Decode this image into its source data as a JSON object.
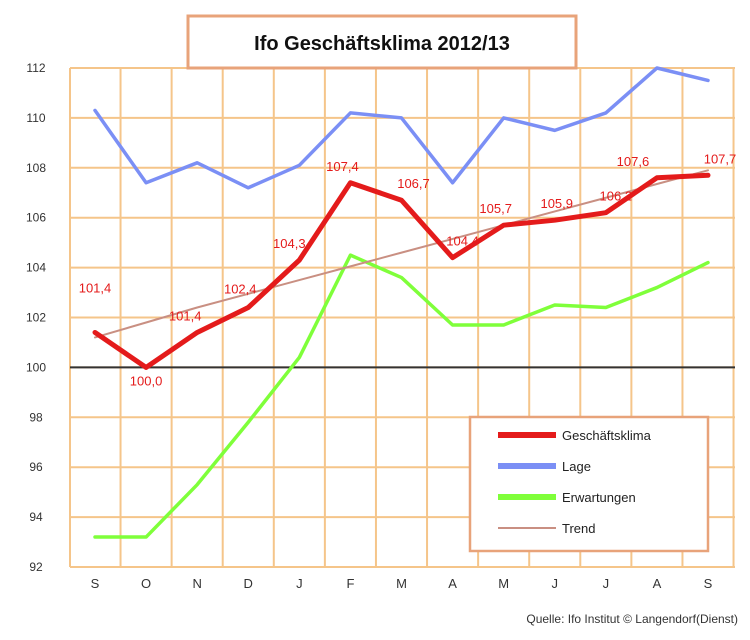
{
  "chart_data": {
    "type": "line",
    "title": "Ifo Geschäftsklima 2012/13",
    "source": "Quelle: Ifo Institut © Langendorf(Dienst)",
    "categories": [
      "S",
      "O",
      "N",
      "D",
      "J",
      "F",
      "M",
      "A",
      "M",
      "J",
      "J",
      "A",
      "S"
    ],
    "ylim": [
      92,
      112
    ],
    "yticks": [
      92,
      94,
      96,
      98,
      100,
      102,
      104,
      106,
      108,
      110,
      112
    ],
    "reference_line": 100,
    "grid": true,
    "legend_position": "bottom-right",
    "series": [
      {
        "name": "Geschäftsklima",
        "color": "#e41b1b",
        "values": [
          101.4,
          100.0,
          101.4,
          102.4,
          104.3,
          107.4,
          106.7,
          104.4,
          105.7,
          105.9,
          106.2,
          107.6,
          107.7
        ],
        "labels": [
          "101,4",
          "100,0",
          "101,4",
          "102,4",
          "104,3",
          "107,4",
          "106,7",
          "104,4",
          "105,7",
          "105,9",
          "106,2",
          "107,6",
          "107,7"
        ]
      },
      {
        "name": "Lage",
        "color": "#7b8ff5",
        "values": [
          110.3,
          107.4,
          108.2,
          107.2,
          108.1,
          110.2,
          110.0,
          107.4,
          110.0,
          109.5,
          110.2,
          112.0,
          111.5
        ]
      },
      {
        "name": "Erwartungen",
        "color": "#7fff3a",
        "values": [
          93.2,
          93.2,
          95.3,
          97.8,
          100.4,
          104.5,
          103.6,
          101.7,
          101.7,
          102.5,
          102.4,
          103.2,
          104.2
        ]
      },
      {
        "name": "Trend",
        "color": "#c98f82",
        "values": [
          101.2,
          101.8,
          102.4,
          102.95,
          103.5,
          104.05,
          104.6,
          105.15,
          105.7,
          106.25,
          106.8,
          107.35,
          107.9
        ]
      }
    ]
  }
}
